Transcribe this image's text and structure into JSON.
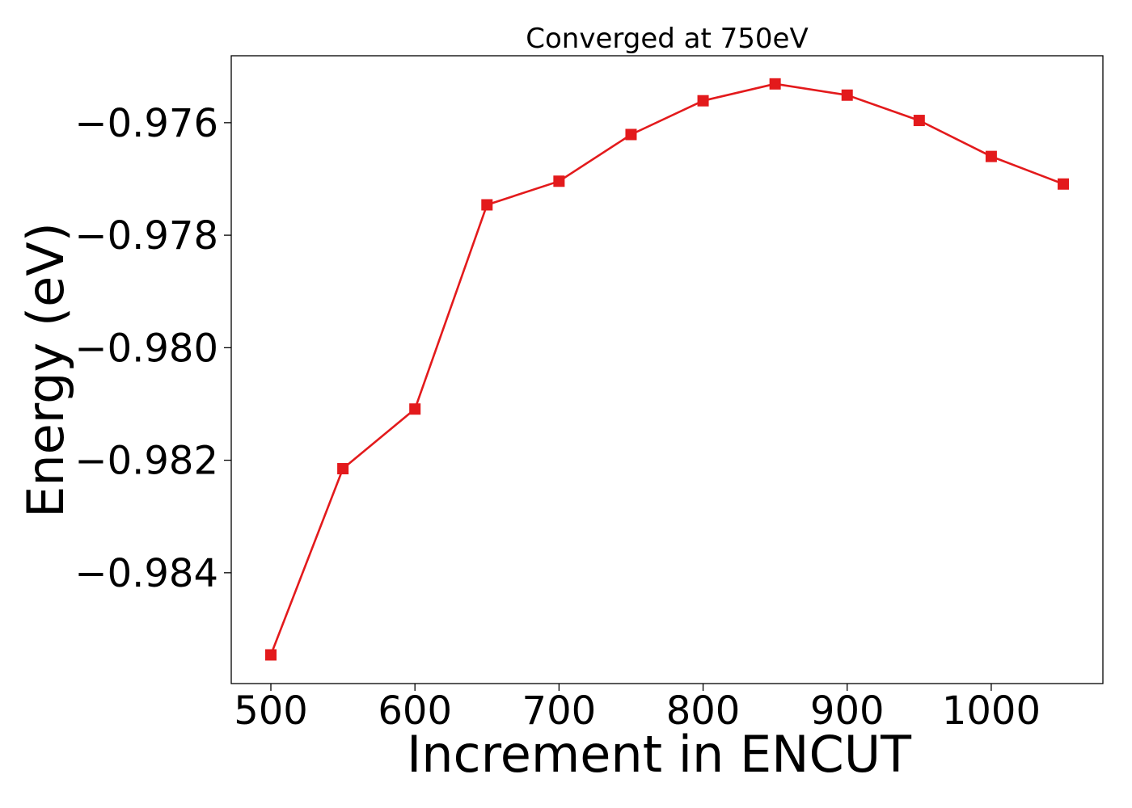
{
  "chart_data": {
    "type": "line",
    "title": "Converged at 750eV",
    "xlabel": "Increment in ENCUT",
    "ylabel": "Energy (eV)",
    "x": [
      500,
      550,
      600,
      650,
      700,
      750,
      800,
      850,
      900,
      950,
      1000,
      1050
    ],
    "series": [
      {
        "values": [
          -0.98546,
          -0.98215,
          -0.98109,
          -0.97746,
          -0.97704,
          -0.97621,
          -0.97561,
          -0.97531,
          -0.97551,
          -0.97596,
          -0.9766,
          -0.97709
        ],
        "color": "#e31a1c",
        "marker": "square"
      }
    ],
    "xlim": [
      472.5,
      1077.5
    ],
    "ylim": [
      -0.98597,
      -0.97481
    ],
    "xticks": [
      500,
      600,
      700,
      800,
      900,
      1000
    ],
    "xtick_labels": [
      "500",
      "600",
      "700",
      "800",
      "900",
      "1000"
    ],
    "yticks": [
      -0.984,
      -0.982,
      -0.98,
      -0.978,
      -0.976
    ],
    "ytick_labels": [
      "−0.984",
      "−0.982",
      "−0.980",
      "−0.978",
      "−0.976"
    ],
    "grid": false,
    "legend": "none"
  }
}
